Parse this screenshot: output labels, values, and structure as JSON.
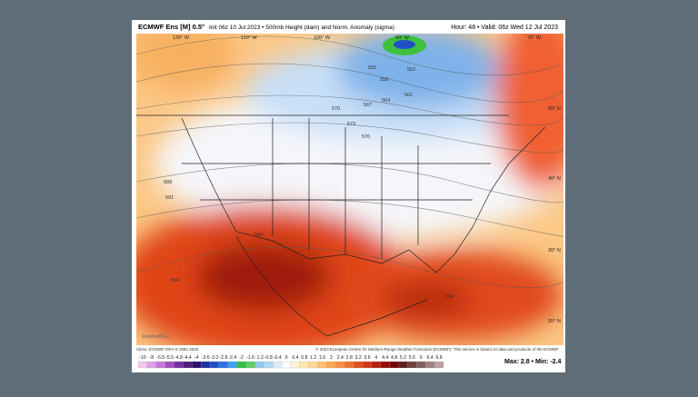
{
  "header": {
    "model": "ECMWF Ens [M] 0.5°",
    "init": "Init 06z 10 Jul 2023 • 500mb Height (dam) and Norm. Anomaly (sigma)",
    "hour_valid": "Hour: 48 • Valid: 06z Wed 12 Jul 2023"
  },
  "map": {
    "contour_labels": [
      "552",
      "555",
      "558",
      "561",
      "564",
      "567",
      "570",
      "573",
      "576",
      "588",
      "591",
      "594",
      "594",
      "594"
    ],
    "longitude_labels": [
      "130° W",
      "110° W",
      "100° W",
      "90° W",
      "70° W"
    ],
    "latitude_labels": [
      "50° N",
      "40° N",
      "30° N",
      "20° N"
    ],
    "logo": "WeatherBELL"
  },
  "footer": {
    "climo": "Climo: ECMWF ERA-5 1991-2020",
    "credit": "© 2023 European Centre for Medium-Range Weather Forecasts (ECMWF). This service is based on data and products of the ECMWF"
  },
  "colorbar": {
    "labels": [
      -10,
      -8,
      -6.5,
      -5.5,
      -4.8,
      -4.4,
      -4,
      -3.6,
      -3.2,
      -2.8,
      -2.4,
      -2,
      -1.6,
      -1.2,
      -0.8,
      -0.4,
      0,
      0.4,
      0.8,
      1.2,
      1.6,
      2,
      2.4,
      2.8,
      3.2,
      3.6,
      4,
      4.4,
      4.8,
      5.2,
      5.6,
      6,
      6.4,
      6.8
    ],
    "colors": [
      "#f0c8f0",
      "#e0a0e8",
      "#c878d8",
      "#a050c0",
      "#7830a0",
      "#502080",
      "#301070",
      "#2030a0",
      "#2050c8",
      "#3070e0",
      "#40a0f0",
      "#30c040",
      "#60d060",
      "#90c8f0",
      "#b0d8f8",
      "#d8ecfc",
      "#ffffff",
      "#fff4d8",
      "#ffe8b0",
      "#ffd890",
      "#ffc070",
      "#ffa850",
      "#f89040",
      "#f07030",
      "#e05020",
      "#d03818",
      "#b82010",
      "#981008",
      "#780808",
      "#602020",
      "#704040",
      "#806060",
      "#a08080",
      "#c0a0a0"
    ]
  },
  "stats": "Max: 2.8 • Min: -2.4"
}
